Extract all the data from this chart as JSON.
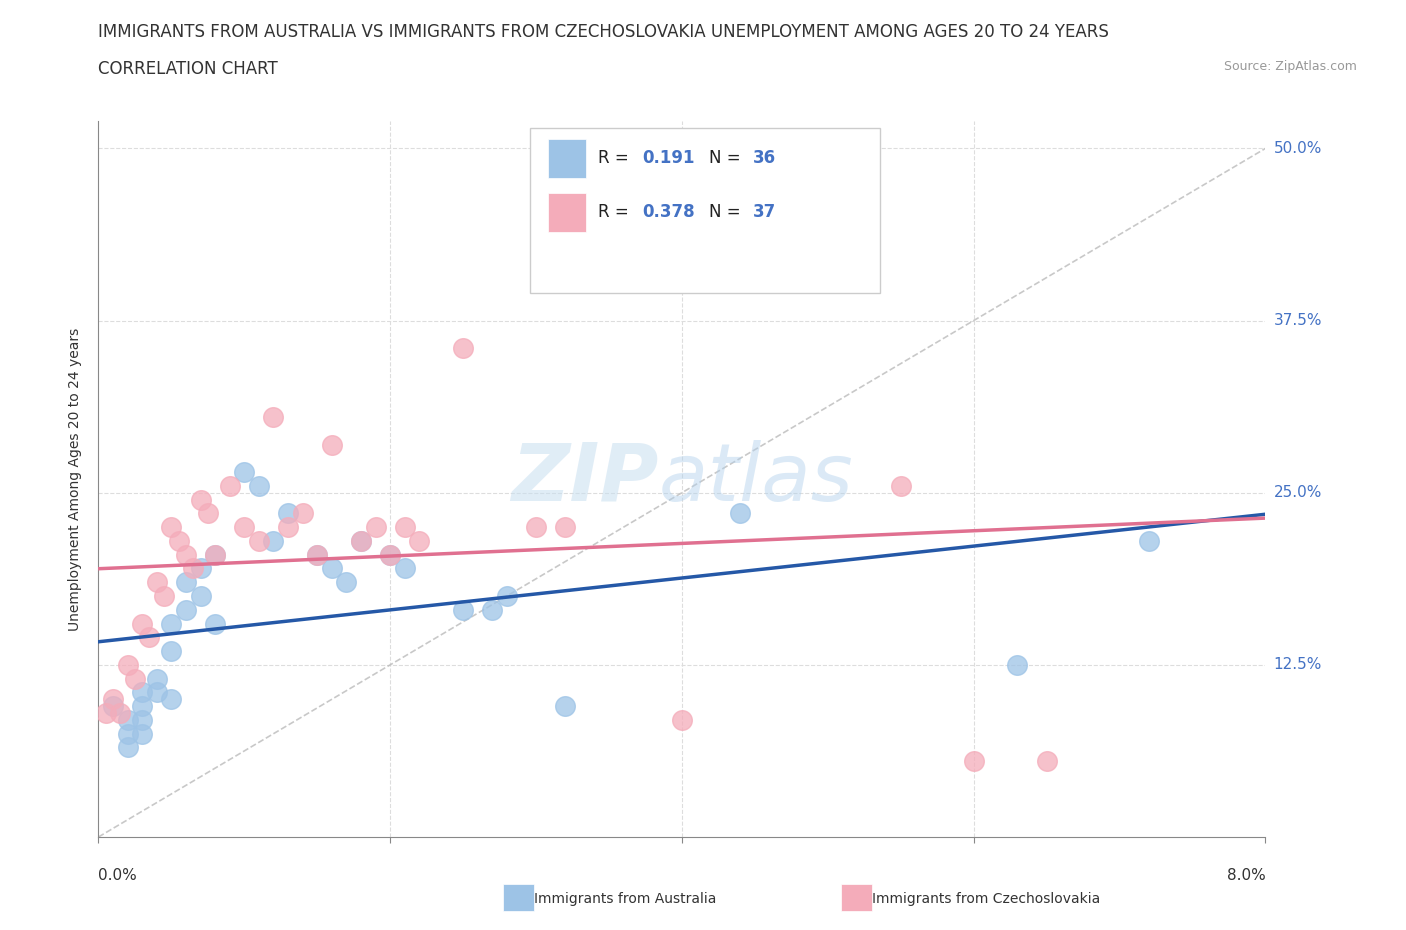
{
  "title_line1": "IMMIGRANTS FROM AUSTRALIA VS IMMIGRANTS FROM CZECHOSLOVAKIA UNEMPLOYMENT AMONG AGES 20 TO 24 YEARS",
  "title_line2": "CORRELATION CHART",
  "source": "Source: ZipAtlas.com",
  "ylabel": "Unemployment Among Ages 20 to 24 years",
  "legend_R_color": "#4472C4",
  "watermark_zip": "ZIP",
  "watermark_atlas": "atlas",
  "australia_color": "#9DC3E6",
  "czechoslovakia_color": "#F4ACBA",
  "australia_line_color": "#2558A7",
  "czechoslovakia_line_color": "#E07090",
  "diagonal_color": "#BBBBBB",
  "grid_color": "#DDDDDD",
  "australia_x": [
    0.001,
    0.002,
    0.002,
    0.002,
    0.003,
    0.003,
    0.003,
    0.003,
    0.004,
    0.004,
    0.005,
    0.005,
    0.005,
    0.006,
    0.006,
    0.007,
    0.007,
    0.008,
    0.008,
    0.01,
    0.011,
    0.012,
    0.013,
    0.015,
    0.016,
    0.017,
    0.018,
    0.02,
    0.021,
    0.025,
    0.027,
    0.028,
    0.032,
    0.044,
    0.063,
    0.072
  ],
  "australia_y": [
    0.095,
    0.085,
    0.075,
    0.065,
    0.105,
    0.095,
    0.085,
    0.075,
    0.115,
    0.105,
    0.155,
    0.135,
    0.1,
    0.185,
    0.165,
    0.195,
    0.175,
    0.205,
    0.155,
    0.265,
    0.255,
    0.215,
    0.235,
    0.205,
    0.195,
    0.185,
    0.215,
    0.205,
    0.195,
    0.165,
    0.165,
    0.175,
    0.095,
    0.235,
    0.125,
    0.215
  ],
  "czechoslovakia_x": [
    0.0005,
    0.001,
    0.0015,
    0.002,
    0.0025,
    0.003,
    0.0035,
    0.004,
    0.0045,
    0.005,
    0.0055,
    0.006,
    0.0065,
    0.007,
    0.0075,
    0.008,
    0.009,
    0.01,
    0.011,
    0.012,
    0.013,
    0.014,
    0.015,
    0.016,
    0.018,
    0.019,
    0.02,
    0.021,
    0.022,
    0.025,
    0.03,
    0.032,
    0.04,
    0.05,
    0.055,
    0.06,
    0.065
  ],
  "czechoslovakia_y": [
    0.09,
    0.1,
    0.09,
    0.125,
    0.115,
    0.155,
    0.145,
    0.185,
    0.175,
    0.225,
    0.215,
    0.205,
    0.195,
    0.245,
    0.235,
    0.205,
    0.255,
    0.225,
    0.215,
    0.305,
    0.225,
    0.235,
    0.205,
    0.285,
    0.215,
    0.225,
    0.205,
    0.225,
    0.215,
    0.355,
    0.225,
    0.225,
    0.085,
    0.5,
    0.255,
    0.055,
    0.055
  ],
  "xmin": 0.0,
  "xmax": 0.08,
  "ymin": 0.0,
  "ymax": 0.52,
  "yticks": [
    0.0,
    0.125,
    0.25,
    0.375,
    0.5
  ],
  "ytick_labels": [
    "",
    "12.5%",
    "25.0%",
    "37.5%",
    "50.0%"
  ],
  "title_fontsize": 12,
  "axis_label_fontsize": 10,
  "tick_fontsize": 11
}
